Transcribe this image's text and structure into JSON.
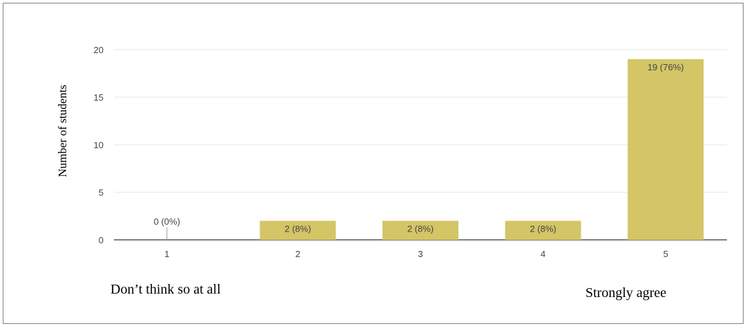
{
  "chart_data": {
    "type": "bar",
    "categories": [
      "1",
      "2",
      "3",
      "4",
      "5"
    ],
    "values": [
      0,
      2,
      2,
      2,
      19
    ],
    "data_labels": [
      "0 (0%)",
      "2 (8%)",
      "2 (8%)",
      "2 (8%)",
      "19 (76%)"
    ],
    "title": "",
    "xlabel": "",
    "ylabel": "Number of students",
    "ylim": [
      0,
      20
    ],
    "yticks": [
      0,
      5,
      10,
      15,
      20
    ],
    "grid": true,
    "bar_color": "#d4c566"
  },
  "scale_labels": {
    "low": "Don’t think so at all",
    "high": "Strongly agree"
  }
}
